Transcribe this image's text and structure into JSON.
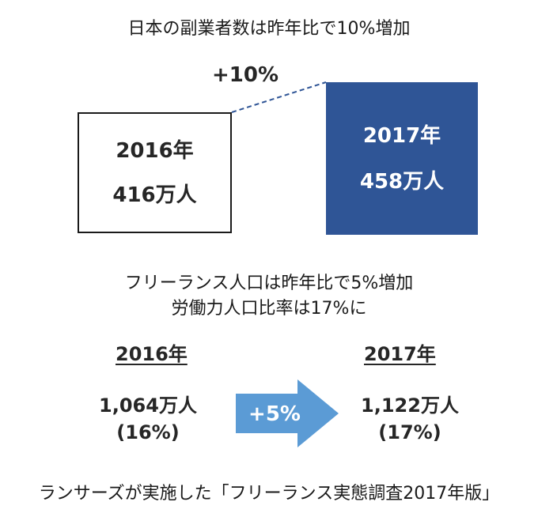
{
  "title": "日本の副業者数は昨年比で10%増加",
  "side_jobs": {
    "change_label": "+10%",
    "box_2016": {
      "year": "2016年",
      "value": "416万人"
    },
    "box_2017": {
      "year": "2017年",
      "value": "458万人"
    }
  },
  "freelance": {
    "subtitle_line1": "フリーランス人口は昨年比で5%増加",
    "subtitle_line2": "労働力人口比率は17%に",
    "year_2016": "2016年",
    "year_2017": "2017年",
    "value_2016": "1,064万人",
    "ratio_2016": "(16%)",
    "value_2017": "1,122万人",
    "ratio_2017": "(17%)",
    "arrow_label": "+5%"
  },
  "source": "ランサーズが実施した「フリーランス実態調査2017年版」",
  "colors": {
    "box_2017_fill": "#2f5596",
    "arrow_fill": "#5b9bd5",
    "connector": "#2f5596"
  }
}
